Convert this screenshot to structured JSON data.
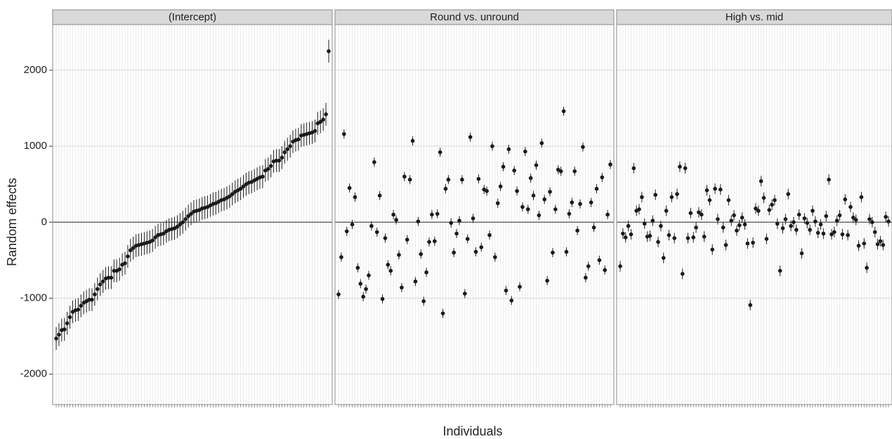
{
  "chart_data": {
    "type": "errorbar",
    "ylabel": "Random effects",
    "xlabel": "Individuals",
    "ylim": [
      -2400,
      2600
    ],
    "yticks": [
      -2000,
      -1000,
      0,
      1000,
      2000
    ],
    "hline": 0,
    "grid": true,
    "color": "#1a1a1a",
    "panels": [
      {
        "title": "(Intercept)",
        "error": 150,
        "values": [
          -1530,
          -1480,
          -1420,
          -1410,
          -1330,
          -1250,
          -1180,
          -1160,
          -1150,
          -1100,
          -1060,
          -1040,
          -1020,
          -1020,
          -950,
          -880,
          -820,
          -780,
          -740,
          -730,
          -730,
          -640,
          -640,
          -620,
          -560,
          -540,
          -450,
          -370,
          -340,
          -310,
          -300,
          -290,
          -280,
          -270,
          -260,
          -240,
          -200,
          -170,
          -160,
          -150,
          -120,
          -100,
          -90,
          -80,
          -60,
          -30,
          0,
          40,
          80,
          110,
          140,
          150,
          160,
          180,
          190,
          200,
          220,
          240,
          250,
          270,
          290,
          300,
          320,
          340,
          370,
          400,
          420,
          440,
          470,
          500,
          520,
          530,
          550,
          570,
          590,
          600,
          680,
          700,
          740,
          800,
          810,
          810,
          850,
          920,
          960,
          1000,
          1060,
          1080,
          1090,
          1140,
          1150,
          1160,
          1170,
          1180,
          1200,
          1300,
          1320,
          1350,
          1420,
          2250
        ]
      },
      {
        "title": "Round vs. unround",
        "error": 60,
        "values": [
          -950,
          -460,
          1160,
          -120,
          450,
          -30,
          330,
          -600,
          -810,
          -980,
          -880,
          -700,
          -50,
          790,
          -130,
          350,
          -1010,
          -210,
          -560,
          -640,
          100,
          30,
          -430,
          -860,
          600,
          -230,
          560,
          1070,
          -780,
          10,
          -420,
          -1040,
          -660,
          -260,
          100,
          -250,
          110,
          920,
          -1200,
          440,
          560,
          -10,
          -400,
          -150,
          20,
          560,
          -940,
          -220,
          1120,
          50,
          -390,
          570,
          -330,
          430,
          410,
          -170,
          1000,
          -460,
          250,
          470,
          730,
          -900,
          960,
          -1030,
          680,
          410,
          -850,
          200,
          930,
          170,
          580,
          350,
          750,
          90,
          1040,
          300,
          -770,
          400,
          -400,
          170,
          690,
          670,
          1460,
          -390,
          110,
          260,
          670,
          -110,
          240,
          990,
          -730,
          -580,
          260,
          -70,
          440,
          -500,
          590,
          -630,
          100,
          760
        ]
      },
      {
        "title": "High vs. mid",
        "error": 70,
        "values": [
          -580,
          -150,
          -200,
          -50,
          -160,
          710,
          150,
          170,
          330,
          -20,
          -190,
          -180,
          20,
          360,
          -260,
          -50,
          -470,
          150,
          -170,
          330,
          -210,
          370,
          730,
          -680,
          710,
          -210,
          120,
          -200,
          -70,
          130,
          100,
          -190,
          420,
          290,
          -360,
          440,
          40,
          430,
          -70,
          -300,
          290,
          20,
          90,
          -110,
          -40,
          60,
          -30,
          -280,
          -1090,
          -270,
          180,
          150,
          540,
          320,
          -220,
          160,
          230,
          290,
          -20,
          -640,
          -80,
          40,
          370,
          -50,
          0,
          -100,
          100,
          -410,
          50,
          -10,
          -100,
          150,
          10,
          -140,
          -30,
          -150,
          80,
          560,
          -160,
          -130,
          20,
          90,
          -160,
          300,
          -170,
          200,
          60,
          30,
          -310,
          330,
          -280,
          -600,
          40,
          0,
          -130,
          -290,
          -250,
          -300,
          70,
          10
        ]
      }
    ]
  }
}
